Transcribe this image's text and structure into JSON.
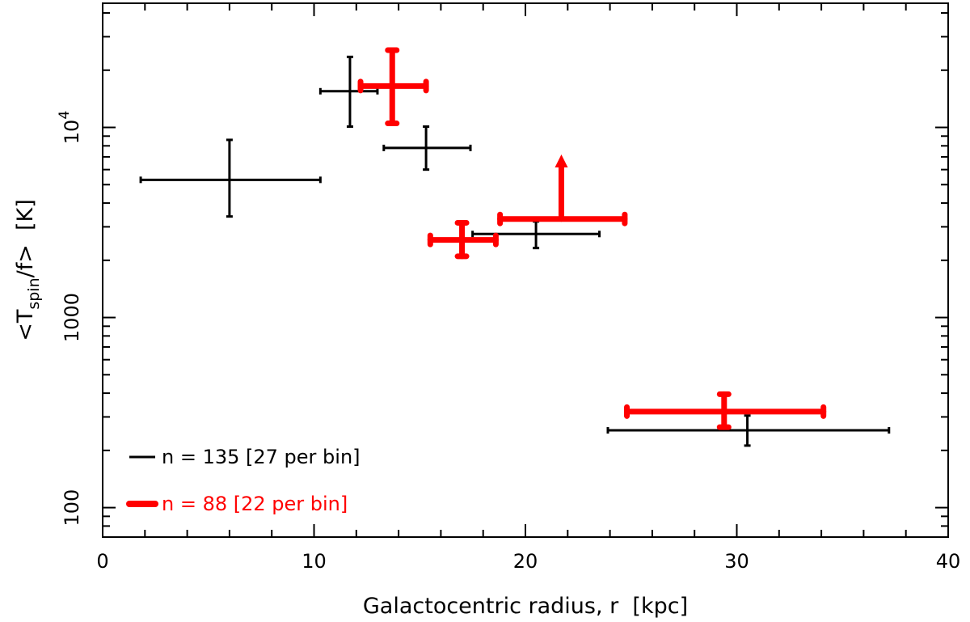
{
  "chart_data": {
    "type": "scatter",
    "xlabel": "Galactocentric radius, r  [kpc]",
    "ylabel": {
      "prefix": "<T",
      "subscript": "spin",
      "suffix": "/f>  [K]"
    },
    "xlim": [
      0,
      40
    ],
    "ylim": [
      70,
      45000
    ],
    "y_scale": "log",
    "grid": false,
    "legend_position": "bottom-left",
    "x_ticks": [
      {
        "value": 0,
        "label": "0"
      },
      {
        "value": 10,
        "label": "10"
      },
      {
        "value": 20,
        "label": "20"
      },
      {
        "value": 30,
        "label": "30"
      },
      {
        "value": 40,
        "label": "40"
      }
    ],
    "y_ticks": [
      {
        "value": 100,
        "label": "100"
      },
      {
        "value": 1000,
        "label": "1000"
      },
      {
        "value": 10000,
        "label": "10",
        "exponent": "4"
      }
    ],
    "series": [
      {
        "name": "n = 135 [27 per bin]",
        "color": "#000000",
        "style": "thin",
        "points": [
          {
            "x": 6.0,
            "xmin": 1.8,
            "xmax": 10.3,
            "y": 5300,
            "ymin": 3400,
            "ymax": 8600,
            "lower_limit": false
          },
          {
            "x": 11.7,
            "xmin": 10.3,
            "xmax": 13.0,
            "y": 15500,
            "ymin": 10100,
            "ymax": 23500,
            "lower_limit": false
          },
          {
            "x": 15.3,
            "xmin": 13.3,
            "xmax": 17.4,
            "y": 7800,
            "ymin": 6000,
            "ymax": 10100,
            "lower_limit": false
          },
          {
            "x": 20.5,
            "xmin": 17.5,
            "xmax": 23.5,
            "y": 2750,
            "ymin": 2320,
            "ymax": 3200,
            "lower_limit": false
          },
          {
            "x": 30.5,
            "xmin": 23.9,
            "xmax": 37.2,
            "y": 255,
            "ymin": 212,
            "ymax": 305,
            "lower_limit": false
          }
        ]
      },
      {
        "name": "n = 88 [22 per bin]",
        "color": "#ff0000",
        "style": "thick",
        "points": [
          {
            "x": 13.7,
            "xmin": 12.2,
            "xmax": 15.3,
            "y": 16500,
            "ymin": 10500,
            "ymax": 25500,
            "lower_limit": false
          },
          {
            "x": 17.0,
            "xmin": 15.5,
            "xmax": 18.6,
            "y": 2560,
            "ymin": 2100,
            "ymax": 3150,
            "lower_limit": false
          },
          {
            "x": 21.7,
            "xmin": 18.8,
            "xmax": 24.7,
            "y": 3300,
            "ymin": 3300,
            "ymax": 7200,
            "lower_limit": true
          },
          {
            "x": 29.4,
            "xmin": 24.8,
            "xmax": 34.1,
            "y": 320,
            "ymin": 265,
            "ymax": 395,
            "lower_limit": false
          }
        ]
      }
    ]
  }
}
